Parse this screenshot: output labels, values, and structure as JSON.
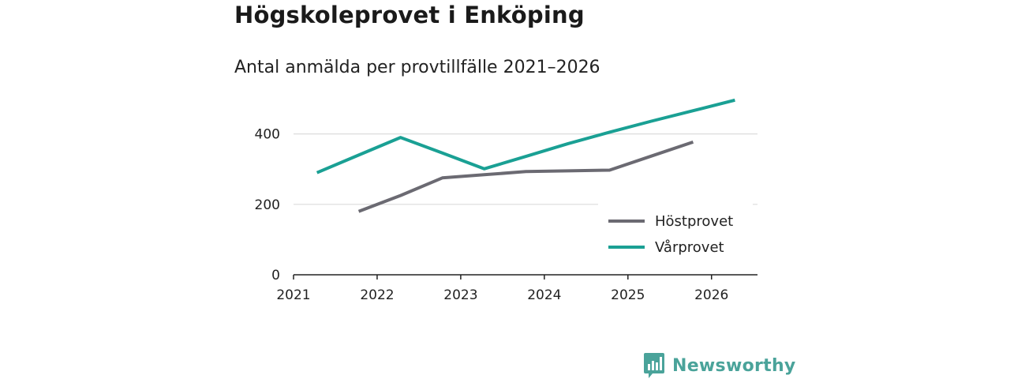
{
  "header": {
    "title": "Högskoleprovet i Enköping",
    "subtitle": "Antal anmälda per provtillfälle 2021–2026"
  },
  "brand": {
    "name": "Newsworthy",
    "icon": "newsworthy-logo-icon",
    "color": "#4aa39a"
  },
  "chart_data": {
    "type": "line",
    "title": "Högskoleprovet i Enköping",
    "subtitle": "Antal anmälda per provtillfälle 2021–2026",
    "xlabel": "",
    "ylabel": "",
    "xlim": [
      2021,
      2026.55
    ],
    "ylim": [
      0,
      500
    ],
    "x_ticks": [
      2021,
      2022,
      2023,
      2024,
      2025,
      2026
    ],
    "y_ticks": [
      0,
      200,
      400
    ],
    "grid": "horizontal",
    "legend_position": "bottom-right",
    "series": [
      {
        "name": "Höstprovet",
        "color": "#6b6a72",
        "points": [
          [
            2021.78,
            180
          ],
          [
            2022.28,
            225
          ],
          [
            2022.78,
            275
          ],
          [
            2023.28,
            284
          ],
          [
            2023.78,
            293
          ],
          [
            2024.28,
            295
          ],
          [
            2024.78,
            297
          ],
          [
            2025.28,
            337
          ],
          [
            2025.78,
            377
          ]
        ]
      },
      {
        "name": "Vårprovet",
        "color": "#1aa094",
        "points": [
          [
            2021.28,
            290
          ],
          [
            2021.78,
            340
          ],
          [
            2022.28,
            390
          ],
          [
            2022.78,
            346
          ],
          [
            2023.28,
            301
          ],
          [
            2023.78,
            336
          ],
          [
            2024.28,
            372
          ],
          [
            2024.78,
            405
          ],
          [
            2025.28,
            436
          ],
          [
            2025.78,
            466
          ],
          [
            2026.28,
            496
          ]
        ]
      }
    ]
  }
}
